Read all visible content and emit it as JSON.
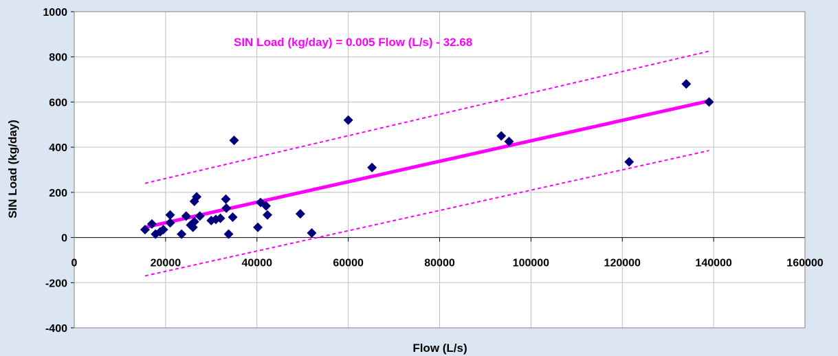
{
  "chart_data": {
    "type": "scatter",
    "title": "",
    "xlabel": "Flow (L/s)",
    "ylabel": "SIN Load (kg/day)",
    "xlim": [
      0,
      160000
    ],
    "ylim": [
      -400,
      1000
    ],
    "xticks": [
      0,
      20000,
      40000,
      60000,
      80000,
      100000,
      120000,
      140000,
      160000
    ],
    "yticks": [
      -400,
      -200,
      0,
      200,
      400,
      600,
      800,
      1000
    ],
    "grid": true,
    "annotation": "SIN Load (kg/day) = 0.005 Flow (L/s) - 32.68",
    "colors": {
      "points": "#00007a",
      "fit": "#ff00ff",
      "background": "#dce6f2",
      "plot": "#ffffff",
      "grid": "#c0c0c0"
    },
    "series": [
      {
        "marker": "diamond",
        "points": [
          [
            15500,
            35
          ],
          [
            17000,
            60
          ],
          [
            17800,
            15
          ],
          [
            18800,
            25
          ],
          [
            19500,
            35
          ],
          [
            21000,
            100
          ],
          [
            21000,
            65
          ],
          [
            23500,
            15
          ],
          [
            24500,
            95
          ],
          [
            25500,
            55
          ],
          [
            26000,
            45
          ],
          [
            26300,
            70
          ],
          [
            26300,
            160
          ],
          [
            26800,
            180
          ],
          [
            27500,
            95
          ],
          [
            30000,
            75
          ],
          [
            31000,
            80
          ],
          [
            32000,
            85
          ],
          [
            33200,
            170
          ],
          [
            33300,
            130
          ],
          [
            33800,
            15
          ],
          [
            34700,
            90
          ],
          [
            35000,
            430
          ],
          [
            40200,
            45
          ],
          [
            40800,
            155
          ],
          [
            42000,
            140
          ],
          [
            42300,
            100
          ],
          [
            49500,
            105
          ],
          [
            52000,
            20
          ],
          [
            60000,
            520
          ],
          [
            65200,
            310
          ],
          [
            93500,
            450
          ],
          [
            95200,
            425
          ],
          [
            121500,
            335
          ],
          [
            134000,
            680
          ],
          [
            139000,
            600
          ]
        ]
      }
    ],
    "fit_line": {
      "x": [
        15500,
        139000
      ],
      "y": [
        45,
        605
      ]
    },
    "prediction_band_upper": {
      "x": [
        15500,
        139000
      ],
      "y": [
        240,
        825
      ]
    },
    "prediction_band_lower": {
      "x": [
        15500,
        139000
      ],
      "y": [
        -170,
        385
      ]
    }
  }
}
